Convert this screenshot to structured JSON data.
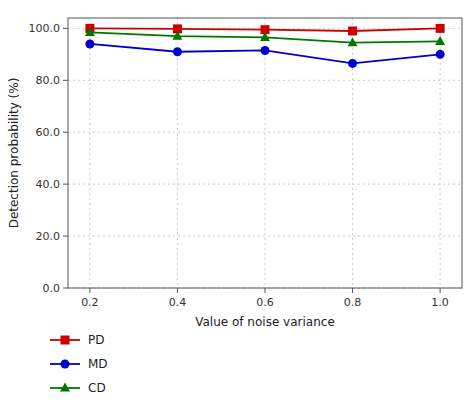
{
  "chart_data": {
    "type": "line",
    "x_label": "Value of noise variance",
    "y_label": "Detection probability (%)",
    "x": [
      0.2,
      0.4,
      0.6,
      0.8,
      1.0
    ],
    "series": [
      {
        "name": "PD",
        "color": "#cc0000",
        "marker": "square",
        "values": [
          100.0,
          99.8,
          99.5,
          99.0,
          100.0
        ]
      },
      {
        "name": "MD",
        "color": "#0000cc",
        "marker": "circle",
        "values": [
          94.0,
          91.0,
          91.5,
          86.5,
          90.0
        ]
      },
      {
        "name": "CD",
        "color": "#007700",
        "marker": "triangle",
        "values": [
          98.5,
          97.0,
          96.5,
          94.5,
          95.0
        ]
      }
    ],
    "xlim": [
      0.15,
      1.05
    ],
    "ylim": [
      0.0,
      104.0
    ],
    "xticks": [
      0.2,
      0.4,
      0.6,
      0.8,
      {
        "value": 1.0,
        "label": "1.0"
      }
    ],
    "yticks": [
      {
        "value": 0.0,
        "label": "0.0"
      },
      {
        "value": 20.0,
        "label": "20.0"
      },
      {
        "value": 40.0,
        "label": "40.0"
      },
      {
        "value": 60.0,
        "label": "60.0"
      },
      {
        "value": 80.0,
        "label": "80.0"
      },
      {
        "value": 100.0,
        "label": "100.0"
      }
    ],
    "grid": true,
    "legend": "bottom"
  }
}
